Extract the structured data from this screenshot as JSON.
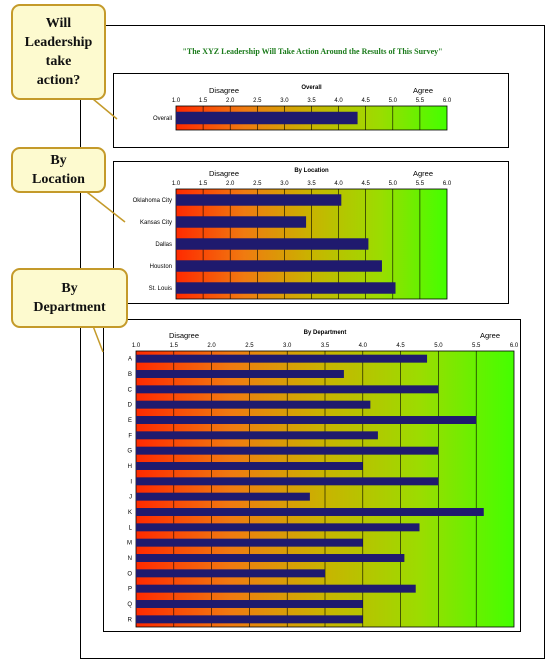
{
  "page_title": "\"The XYZ Leadership Will Take Action Around the Results of This Survey\"",
  "callouts": [
    {
      "text": "Will\nLeadership\ntake\naction?"
    },
    {
      "text": "By\nLocation"
    },
    {
      "text": "By\nDepartment"
    }
  ],
  "colors": {
    "bar": "#1f1a6e",
    "gradient": [
      "#ff2a00",
      "#f07a10",
      "#c8b400",
      "#9cdc00",
      "#44ff00"
    ],
    "callout_fill": "#fdfacf",
    "callout_border": "#c49a2a",
    "title": "#1a7a1a"
  },
  "chart_data": [
    {
      "type": "bar",
      "orientation": "horizontal",
      "title": "Overall",
      "left_label": "Disagree",
      "right_label": "Agree",
      "xlim": [
        1.0,
        6.0
      ],
      "ticks": [
        "1.0",
        "1.5",
        "2.0",
        "2.5",
        "3.0",
        "3.5",
        "4.0",
        "4.5",
        "5.0",
        "5.5",
        "6.0"
      ],
      "categories": [
        "Overall"
      ],
      "values": [
        4.35
      ]
    },
    {
      "type": "bar",
      "orientation": "horizontal",
      "title": "By Location",
      "left_label": "Disagree",
      "right_label": "Agree",
      "xlim": [
        1.0,
        6.0
      ],
      "ticks": [
        "1.0",
        "1.5",
        "2.0",
        "2.5",
        "3.0",
        "3.5",
        "4.0",
        "4.5",
        "5.0",
        "5.5",
        "6.0"
      ],
      "categories": [
        "Oklahoma City",
        "Kansas City",
        "Dallas",
        "Houston",
        "St. Louis"
      ],
      "values": [
        4.05,
        3.4,
        4.55,
        4.8,
        5.05
      ]
    },
    {
      "type": "bar",
      "orientation": "horizontal",
      "title": "By Department",
      "left_label": "Disagree",
      "right_label": "Agree",
      "xlim": [
        1.0,
        6.0
      ],
      "ticks": [
        "1.0",
        "1.5",
        "2.0",
        "2.5",
        "3.0",
        "3.5",
        "4.0",
        "4.5",
        "5.0",
        "5.5",
        "6.0"
      ],
      "categories": [
        "A",
        "B",
        "C",
        "D",
        "E",
        "F",
        "G",
        "H",
        "I",
        "J",
        "K",
        "L",
        "M",
        "N",
        "O",
        "P",
        "Q",
        "R"
      ],
      "values": [
        4.85,
        3.75,
        5.0,
        4.1,
        5.5,
        4.2,
        5.0,
        4.0,
        5.0,
        3.3,
        5.6,
        4.75,
        4.0,
        4.55,
        3.5,
        4.7,
        4.0,
        4.0
      ]
    }
  ]
}
